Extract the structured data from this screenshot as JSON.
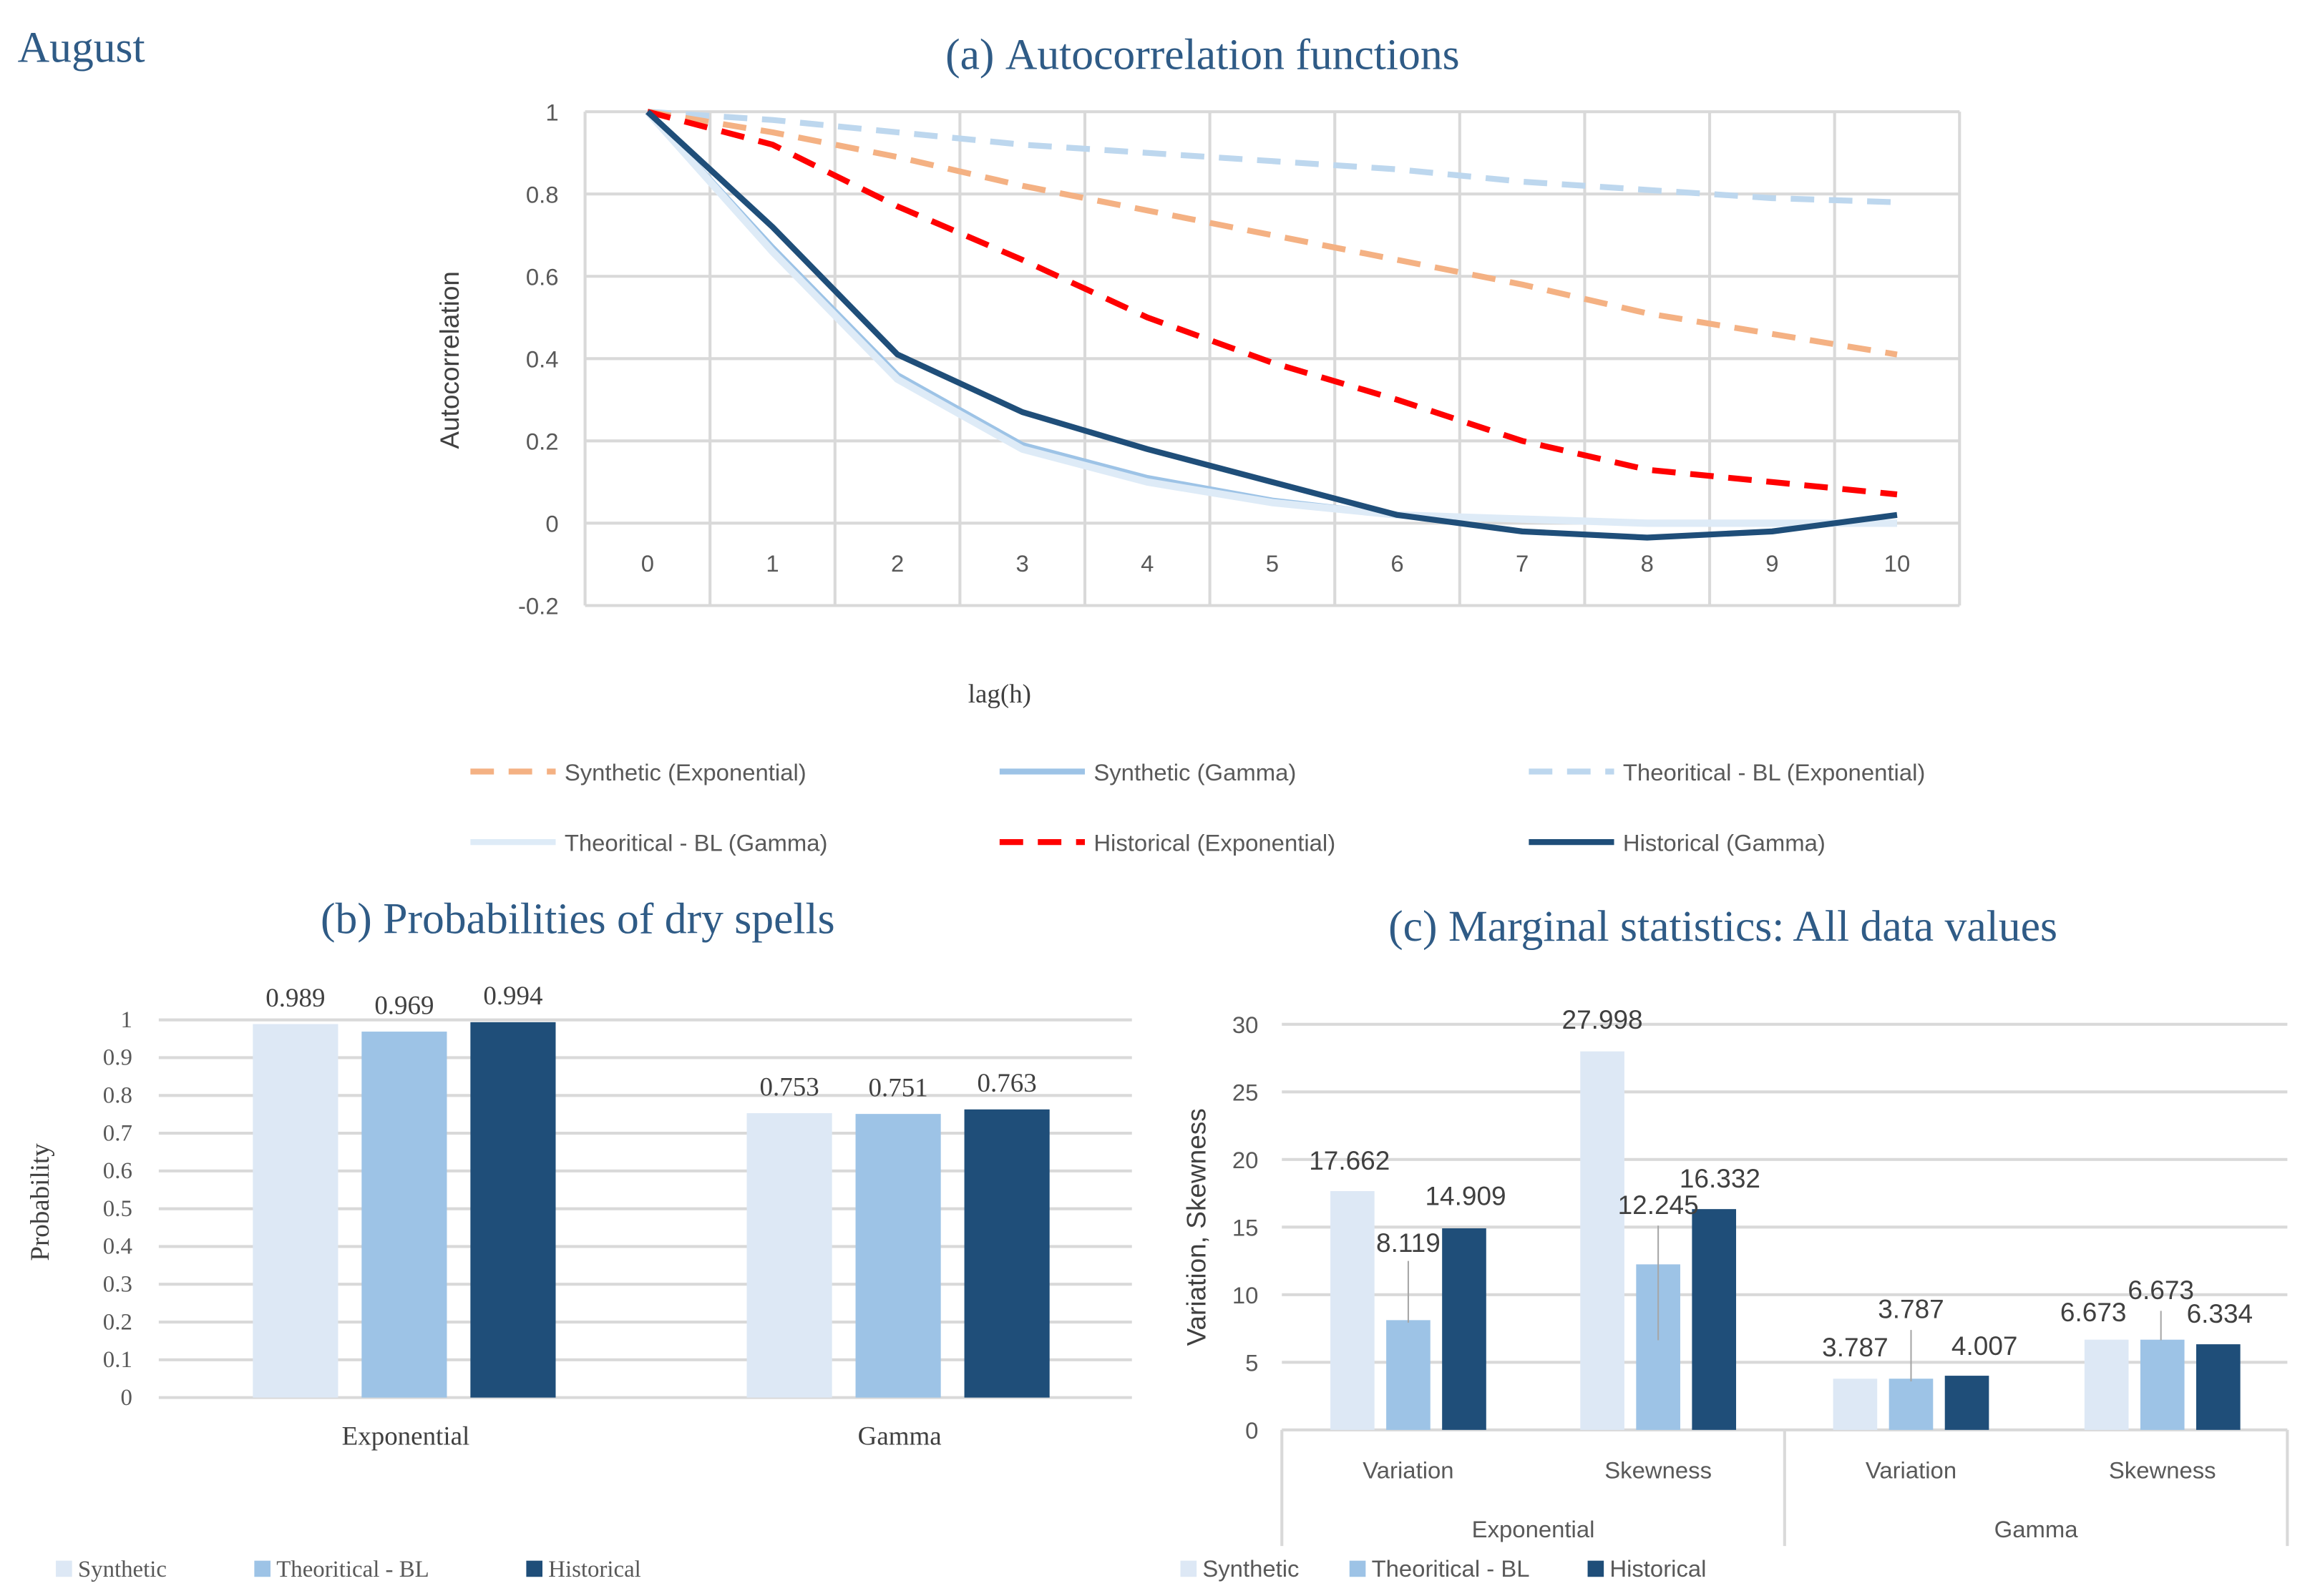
{
  "page_title": "August",
  "colors": {
    "synthetic": "#dde8f5",
    "theoretical": "#9dc3e6",
    "historical": "#1f4e79",
    "syn_exp": "#f4b183",
    "theo_exp": "#bdd7ee",
    "hist_exp": "#ff0000",
    "theo_gamma": "#deebf7",
    "syn_gamma": "#9dc3e6",
    "hist_gamma": "#1f4e79",
    "title": "#2f5b86"
  },
  "chart_data": [
    {
      "type": "line",
      "title_prefix": "(a)",
      "title": "Autocorrelation functions",
      "xlabel": "lag(h)",
      "ylabel": "Autocorrelation",
      "x": [
        0,
        1,
        2,
        3,
        4,
        5,
        6,
        7,
        8,
        9,
        10
      ],
      "ylim": [
        -0.2,
        1
      ],
      "yticks": [
        "1",
        "0.8",
        "0.6",
        "0.4",
        "0.2",
        "0",
        "-0.2"
      ],
      "grid": true,
      "legend_position": "bottom",
      "series": [
        {
          "name": "Synthetic (Exponential)",
          "style": "dashed",
          "values": [
            1,
            0.95,
            0.89,
            0.82,
            0.76,
            0.7,
            0.64,
            0.58,
            0.51,
            0.46,
            0.41
          ]
        },
        {
          "name": "Synthetic (Gamma)",
          "style": "solid",
          "values": [
            1,
            0.67,
            0.36,
            0.19,
            0.11,
            0.055,
            0.02,
            0.01,
            0.0,
            0.0,
            0.0
          ]
        },
        {
          "name": "Theoritical - BL (Exponential)",
          "style": "dashed",
          "values": [
            1,
            0.98,
            0.95,
            0.92,
            0.9,
            0.88,
            0.86,
            0.83,
            0.81,
            0.79,
            0.78
          ]
        },
        {
          "name": "Theoritical - BL (Gamma)",
          "style": "solid",
          "values": [
            1,
            0.66,
            0.35,
            0.18,
            0.1,
            0.05,
            0.02,
            0.01,
            0.0,
            0.0,
            0.0
          ]
        },
        {
          "name": "Historical (Exponential)",
          "style": "dashed",
          "values": [
            1,
            0.92,
            0.77,
            0.64,
            0.5,
            0.39,
            0.3,
            0.2,
            0.13,
            0.1,
            0.07
          ]
        },
        {
          "name": "Historical (Gamma)",
          "style": "solid",
          "values": [
            1,
            0.72,
            0.41,
            0.27,
            0.18,
            0.1,
            0.02,
            -0.02,
            -0.035,
            -0.02,
            0.02
          ]
        }
      ]
    },
    {
      "type": "bar",
      "title_prefix": "(b)",
      "title": "Probabilities of dry spells",
      "ylabel": "Probability",
      "categories": [
        "Exponential",
        "Gamma"
      ],
      "ylim": [
        0,
        1
      ],
      "yticks": [
        "1",
        "0.9",
        "0.8",
        "0.7",
        "0.6",
        "0.5",
        "0.4",
        "0.3",
        "0.2",
        "0.1",
        "0"
      ],
      "legend_position": "bottom-left",
      "series": [
        {
          "name": "Synthetic",
          "values": [
            0.989,
            0.753
          ],
          "labels": [
            "0.989",
            "0.753"
          ]
        },
        {
          "name": "Theoritical - BL",
          "values": [
            0.969,
            0.751
          ],
          "labels": [
            "0.969",
            "0.751"
          ]
        },
        {
          "name": "Historical",
          "values": [
            0.994,
            0.763
          ],
          "labels": [
            "0.994",
            "0.763"
          ]
        }
      ]
    },
    {
      "type": "bar",
      "title_prefix": "(c)",
      "title": "Marginal statistics: All data values",
      "ylabel": "Variation, Skewness",
      "categories": [
        "Variation",
        "Skewness",
        "Variation",
        "Skewness"
      ],
      "groups": [
        "Exponential",
        "Gamma"
      ],
      "ylim": [
        0,
        30
      ],
      "yticks": [
        "30",
        "25",
        "20",
        "15",
        "10",
        "5",
        "0"
      ],
      "legend_position": "bottom-left",
      "series": [
        {
          "name": "Synthetic",
          "values": [
            17.662,
            27.998,
            3.787,
            6.673
          ],
          "labels": [
            "17.662",
            "27.998",
            "3.787",
            "6.673"
          ]
        },
        {
          "name": "Theoritical - BL",
          "values": [
            8.119,
            12.245,
            3.787,
            6.673
          ],
          "labels": [
            "8.119",
            "12.245",
            "3.787",
            "6.673"
          ]
        },
        {
          "name": "Historical",
          "values": [
            14.909,
            16.332,
            4.007,
            6.334
          ],
          "labels": [
            "14.909",
            "16.332",
            "4.007",
            "6.334"
          ]
        }
      ]
    }
  ]
}
